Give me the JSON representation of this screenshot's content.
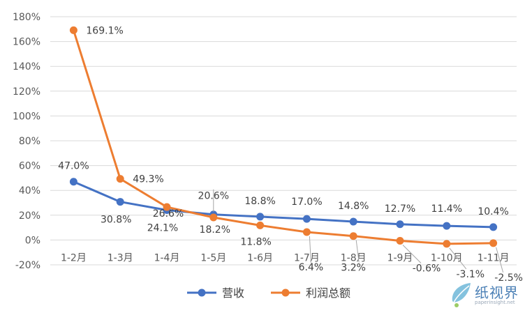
{
  "chart_data": {
    "type": "line",
    "categories": [
      "1-2月",
      "1-3月",
      "1-4月",
      "1-5月",
      "1-6月",
      "1-7月",
      "1-8月",
      "1-9月",
      "1-10月",
      "1-11月"
    ],
    "series": [
      {
        "name": "营收",
        "color": "#4472C4",
        "values": [
          47.0,
          30.8,
          24.1,
          20.6,
          18.8,
          17.0,
          14.8,
          12.7,
          11.4,
          10.4
        ],
        "labels": [
          "47.0%",
          "30.8%",
          "24.1%",
          "20.6%",
          "18.8%",
          "17.0%",
          "14.8%",
          "12.7%",
          "11.4%",
          "10.4%"
        ]
      },
      {
        "name": "利润总额",
        "color": "#ED7D31",
        "values": [
          169.1,
          49.3,
          26.6,
          18.2,
          11.8,
          6.4,
          3.2,
          -0.6,
          -3.1,
          -2.5
        ],
        "labels": [
          "169.1%",
          "49.3%",
          "26.6%",
          "18.2%",
          "11.8%",
          "6.4%",
          "3.2%",
          "-0.6%",
          "-3.1%",
          "-2.5%"
        ]
      }
    ],
    "ylim": [
      -20,
      180
    ],
    "yticks": [
      "-20%",
      "0%",
      "20%",
      "40%",
      "60%",
      "80%",
      "100%",
      "120%",
      "140%",
      "160%",
      "180%"
    ],
    "grid": true,
    "legend": "bottom"
  },
  "watermark": {
    "text": "纸视界",
    "url": "paperinsight.net",
    "color": "#4a7fb5"
  }
}
